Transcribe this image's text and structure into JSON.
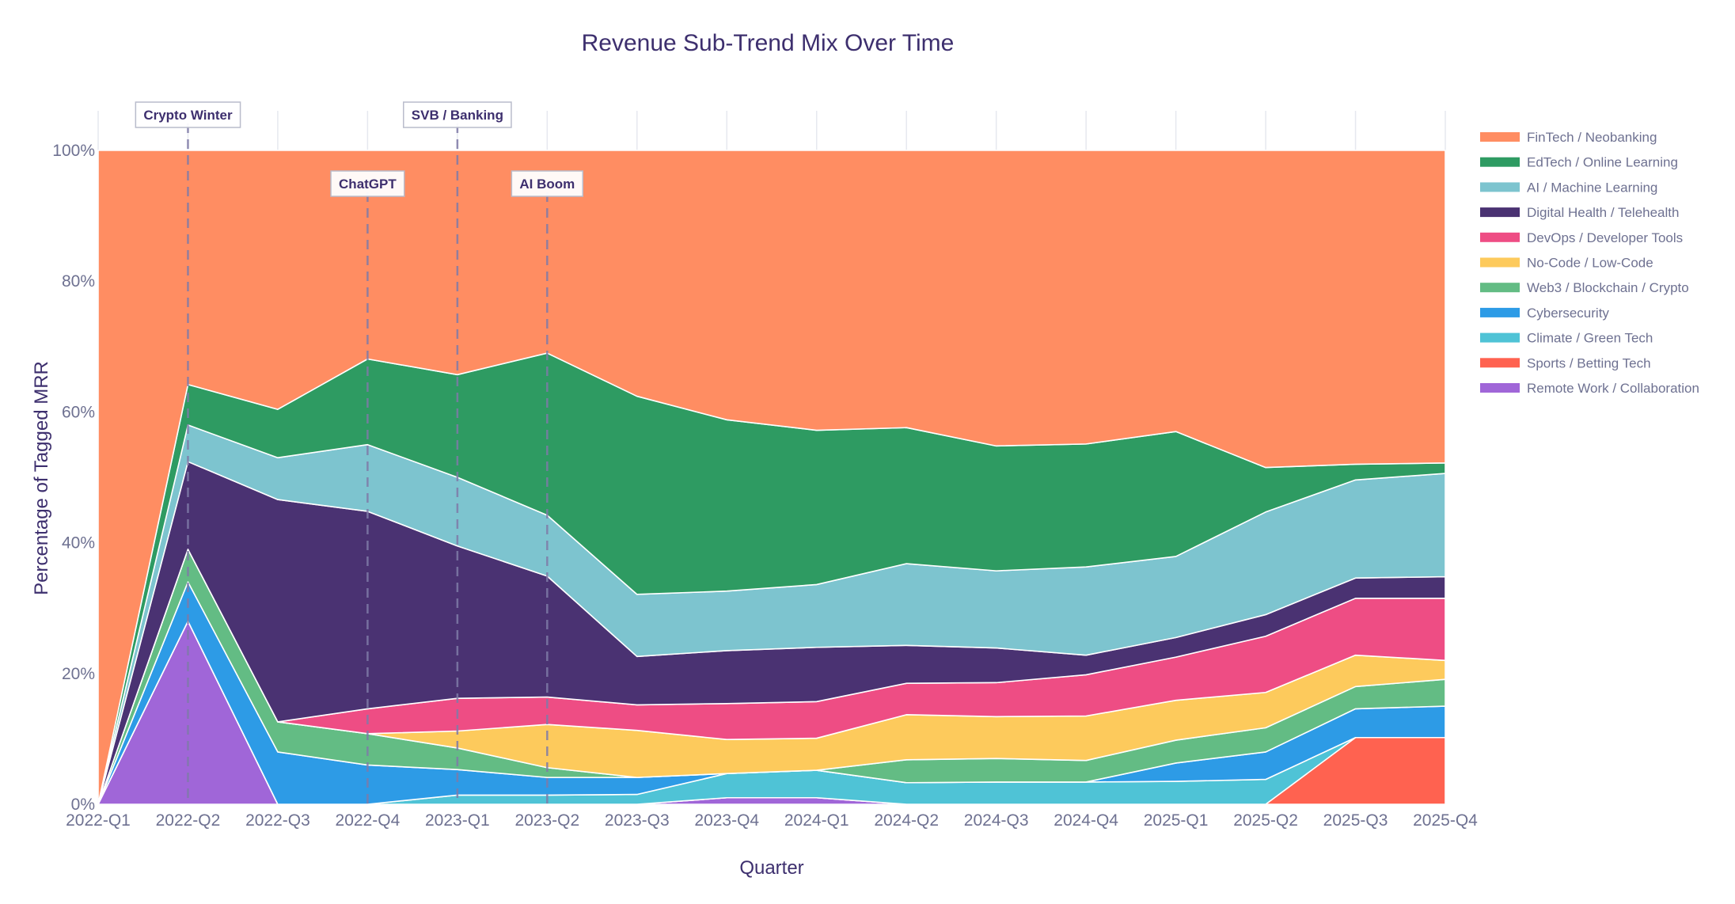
{
  "chart_data": {
    "type": "area",
    "stacked": true,
    "normalized": true,
    "title": "Revenue Sub-Trend Mix Over Time",
    "xlabel": "Quarter",
    "ylabel": "Percentage of Tagged MRR",
    "ylim": [
      0,
      100
    ],
    "yticks": [
      "0%",
      "20%",
      "40%",
      "60%",
      "80%",
      "100%"
    ],
    "grid": true,
    "legend_position": "right",
    "categories": [
      "2022-Q1",
      "2022-Q2",
      "2022-Q3",
      "2022-Q4",
      "2023-Q1",
      "2023-Q2",
      "2023-Q3",
      "2023-Q4",
      "2024-Q1",
      "2024-Q2",
      "2024-Q3",
      "2024-Q4",
      "2025-Q1",
      "2025-Q2",
      "2025-Q3",
      "2025-Q4"
    ],
    "series": [
      {
        "name": "Remote Work / Collaboration",
        "color": "#a066d8",
        "values": [
          0,
          28,
          0,
          0,
          0,
          0,
          0,
          1,
          1,
          0,
          0,
          0,
          0,
          0,
          0,
          0
        ]
      },
      {
        "name": "Sports / Betting Tech",
        "color": "#ff6250",
        "values": [
          0,
          0,
          0,
          0,
          0,
          0,
          0,
          0,
          0,
          0,
          0,
          0,
          0,
          0,
          10.2,
          10.2
        ]
      },
      {
        "name": "Climate / Green Tech",
        "color": "#4fc3d6",
        "values": [
          0,
          0,
          0,
          0,
          1.4,
          1.4,
          1.5,
          3.7,
          4.2,
          3.3,
          3.4,
          3.4,
          3.5,
          3.8,
          0,
          0
        ]
      },
      {
        "name": "Cybersecurity",
        "color": "#2d9be6",
        "values": [
          0,
          6,
          8,
          6,
          3.9,
          2.7,
          2.6,
          0,
          0,
          0,
          0,
          0,
          2.8,
          4.2,
          4.4,
          4.8
        ]
      },
      {
        "name": "Web3 / Blockchain / Crypto",
        "color": "#63bc84",
        "values": [
          0,
          5,
          4.6,
          4.8,
          3.3,
          1.5,
          0,
          0,
          0,
          3.5,
          3.6,
          3.3,
          3.5,
          3.7,
          3.4,
          4.1
        ]
      },
      {
        "name": "No-Code / Low-Code",
        "color": "#fdca5c",
        "values": [
          0,
          0,
          0,
          0,
          2.6,
          6.6,
          7.2,
          5.2,
          4.9,
          6.9,
          6.4,
          6.8,
          6.1,
          5.4,
          4.8,
          2.9
        ]
      },
      {
        "name": "DevOps / Developer Tools",
        "color": "#ee4d84",
        "values": [
          0,
          0,
          0,
          3.8,
          5,
          4.2,
          3.9,
          5.5,
          5.6,
          4.8,
          5.2,
          6.3,
          6.6,
          8.6,
          8.7,
          9.5
        ]
      },
      {
        "name": "Digital Health / Telehealth",
        "color": "#4a3272",
        "values": [
          0,
          13.4,
          34,
          30.2,
          23.3,
          18.5,
          7.4,
          8.1,
          8.3,
          5.8,
          5.3,
          3,
          3,
          3.3,
          3.1,
          3.3
        ]
      },
      {
        "name": "AI / Machine Learning",
        "color": "#7dc4cf",
        "values": [
          0,
          5.6,
          6.4,
          10.2,
          10.5,
          9.3,
          9.5,
          9.1,
          9.6,
          12.5,
          11.8,
          13.5,
          12.4,
          15.7,
          15,
          15.8
        ]
      },
      {
        "name": "EdTech / Online Learning",
        "color": "#2e9b62",
        "values": [
          0,
          6.2,
          7.4,
          13.1,
          15.7,
          24.8,
          30.3,
          26.2,
          23.6,
          20.8,
          19.1,
          18.8,
          19.1,
          6.8,
          2.4,
          1.6
        ]
      },
      {
        "name": "FinTech / Neobanking",
        "color": "#ff8d62",
        "values": [
          100,
          35.8,
          39.6,
          31.9,
          34.3,
          31,
          37.6,
          41.2,
          42.8,
          42.4,
          45.2,
          44.9,
          43,
          48.5,
          48,
          47.8
        ]
      }
    ],
    "annotations": [
      {
        "label": "Crypto Winter",
        "x": "2022-Q2"
      },
      {
        "label": "ChatGPT",
        "x": "2022-Q4"
      },
      {
        "label": "SVB / Banking",
        "x": "2023-Q1"
      },
      {
        "label": "AI Boom",
        "x": "2023-Q2"
      }
    ]
  }
}
